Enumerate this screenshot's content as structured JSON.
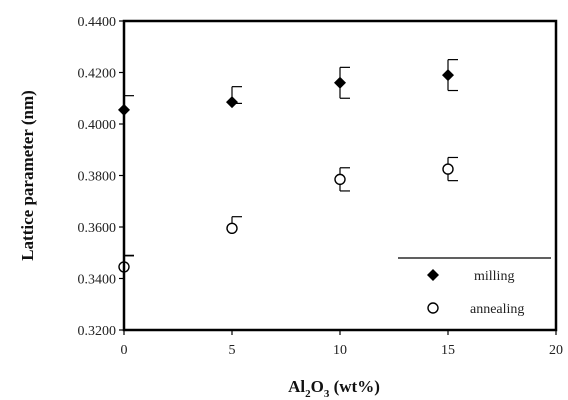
{
  "chart_data": {
    "type": "scatter",
    "title": "",
    "xlabel_parts": {
      "a": "Al",
      "a_sub": "2",
      "b": "O",
      "b_sub": "3",
      "c": " (wt%)"
    },
    "ylabel": "Lattice parameter (nm)",
    "xlim": [
      0,
      20
    ],
    "ylim": [
      0.32,
      0.44
    ],
    "x_ticks": [
      0,
      5,
      10,
      15,
      20
    ],
    "x_tick_labels": [
      "0",
      "5",
      "10",
      "15",
      "20"
    ],
    "y_ticks": [
      0.32,
      0.34,
      0.36,
      0.38,
      0.4,
      0.42,
      0.44
    ],
    "y_tick_labels": [
      "0.3200",
      "0.3400",
      "0.3600",
      "0.3800",
      "0.4000",
      "0.4200",
      "0.4400"
    ],
    "grid": false,
    "legend_position": "bottom-right",
    "series": [
      {
        "name": "milling",
        "marker": "filled-diamond",
        "color": "#000000",
        "x": [
          0,
          5,
          10,
          15
        ],
        "y": [
          0.4055,
          0.4085,
          0.416,
          0.419
        ],
        "err_plus": [
          0.0055,
          0.006,
          0.006,
          0.006
        ],
        "err_minus": [
          0.0567,
          0.0005,
          0.006,
          0.006
        ]
      },
      {
        "name": "annealing",
        "marker": "open-circle",
        "color": "#000000",
        "x": [
          0,
          5,
          10,
          15
        ],
        "y": [
          0.3445,
          0.3595,
          0.3785,
          0.3825
        ],
        "err_plus": [
          0.0045,
          0.0045,
          0.0045,
          0.0045
        ],
        "err_minus": [
          0.0,
          0.0,
          0.0045,
          0.0045
        ]
      }
    ]
  }
}
